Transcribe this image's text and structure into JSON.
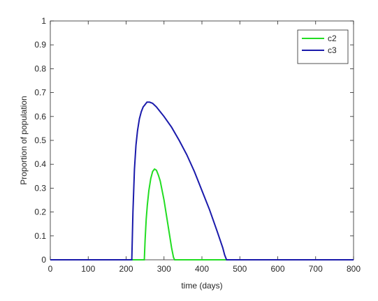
{
  "chart_data": {
    "type": "line",
    "xlabel": "time (days)",
    "ylabel": "Proportion of population",
    "xlim": [
      0,
      800
    ],
    "xticks": [
      0,
      100,
      200,
      300,
      400,
      500,
      600,
      700,
      800
    ],
    "ylim": [
      0,
      1
    ],
    "yticks": [
      0,
      0.1,
      0.2,
      0.3,
      0.4,
      0.5,
      0.6,
      0.7,
      0.8,
      0.9,
      1
    ],
    "legend": "top-right",
    "series": [
      {
        "name": "c2",
        "color": "#22dd22",
        "x": [
          0,
          248,
          250,
          253,
          256,
          260,
          265,
          270,
          275,
          280,
          285,
          290,
          295,
          300,
          305,
          310,
          315,
          320,
          325,
          328,
          800
        ],
        "values": [
          0,
          0,
          0.08,
          0.17,
          0.23,
          0.29,
          0.34,
          0.37,
          0.38,
          0.375,
          0.355,
          0.33,
          0.29,
          0.25,
          0.2,
          0.15,
          0.1,
          0.05,
          0.01,
          0,
          0
        ]
      },
      {
        "name": "c3",
        "color": "#1a1aab",
        "x": [
          0,
          215,
          218,
          222,
          226,
          230,
          235,
          240,
          245,
          250,
          255,
          262,
          270,
          280,
          290,
          300,
          320,
          340,
          360,
          380,
          400,
          420,
          440,
          455,
          460,
          465,
          800
        ],
        "values": [
          0,
          0,
          0.2,
          0.38,
          0.48,
          0.54,
          0.59,
          0.62,
          0.64,
          0.65,
          0.66,
          0.66,
          0.655,
          0.64,
          0.62,
          0.6,
          0.555,
          0.5,
          0.44,
          0.37,
          0.29,
          0.21,
          0.12,
          0.05,
          0.02,
          0,
          0
        ]
      }
    ]
  }
}
